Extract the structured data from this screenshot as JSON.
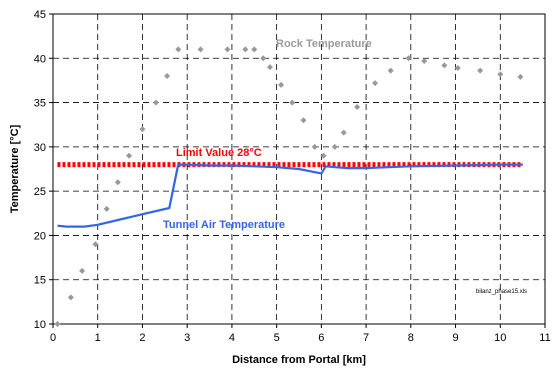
{
  "colors": {
    "rock": "#999999",
    "tunnel_air": "#3366e6",
    "limit": "#ff0000",
    "grid": "#000000",
    "label_rock": "#9a9a9a",
    "label_air": "#3366e6",
    "label_limit": "#ff0000"
  },
  "chart_data": {
    "type": "line",
    "xlabel": "Distance from Portal [km]",
    "ylabel": "Temperature [°C]",
    "xlim": [
      0,
      11
    ],
    "ylim": [
      10,
      45
    ],
    "xticks": [
      "0",
      "1",
      "2",
      "3",
      "4",
      "5",
      "6",
      "7",
      "8",
      "9",
      "10",
      "11"
    ],
    "yticks": [
      "10",
      "15",
      "20",
      "25",
      "30",
      "35",
      "40",
      "45"
    ],
    "grid": true,
    "series": [
      {
        "name": "Rock Temperature",
        "style": "diamond markers",
        "x": [
          0.1,
          0.4,
          0.65,
          0.95,
          1.2,
          1.45,
          1.7,
          2.0,
          2.3,
          2.55,
          2.8,
          3.3,
          3.9,
          4.3,
          4.5,
          4.7,
          4.85,
          5.1,
          5.35,
          5.6,
          5.85,
          6.05,
          6.3,
          6.5,
          6.8,
          7.2,
          7.55,
          7.95,
          8.3,
          8.75,
          9.05,
          9.55,
          10.0,
          10.45
        ],
        "y": [
          10,
          13,
          16,
          19,
          23,
          26,
          29,
          32,
          35,
          38,
          41,
          41,
          41,
          41,
          41,
          40,
          39,
          37,
          35,
          33,
          30,
          29,
          30,
          31.6,
          34.5,
          37.2,
          38.6,
          40,
          39.7,
          39.2,
          38.9,
          38.6,
          38.2,
          37.9
        ]
      },
      {
        "name": "Tunnel Air Temperature",
        "style": "solid line",
        "x": [
          0.1,
          0.3,
          0.5,
          0.7,
          1.0,
          1.5,
          2.0,
          2.6,
          2.8,
          3.0,
          3.5,
          4.0,
          4.5,
          5.0,
          5.5,
          5.8,
          6.0,
          6.1,
          6.3,
          6.6,
          7.0,
          7.5,
          8.0,
          9.0,
          10.0,
          10.5
        ],
        "y": [
          21.1,
          21.0,
          21.0,
          21.0,
          21.2,
          21.8,
          22.4,
          23.1,
          28.0,
          28.0,
          27.9,
          27.9,
          27.8,
          27.7,
          27.5,
          27.2,
          27.0,
          27.8,
          27.7,
          27.6,
          27.6,
          27.7,
          27.8,
          27.9,
          28.0,
          28.0
        ]
      },
      {
        "name": "Limit Value 28°C",
        "style": "dotted line",
        "x": [
          0.1,
          10.5
        ],
        "y": [
          28,
          28
        ]
      }
    ],
    "annotations": {
      "rock_label": "Rock Temperature",
      "air_label": "Tunnel Air Temperature",
      "limit_label": "Limit Value 28°C",
      "file_note": "bilanz_phase15.xls"
    }
  }
}
